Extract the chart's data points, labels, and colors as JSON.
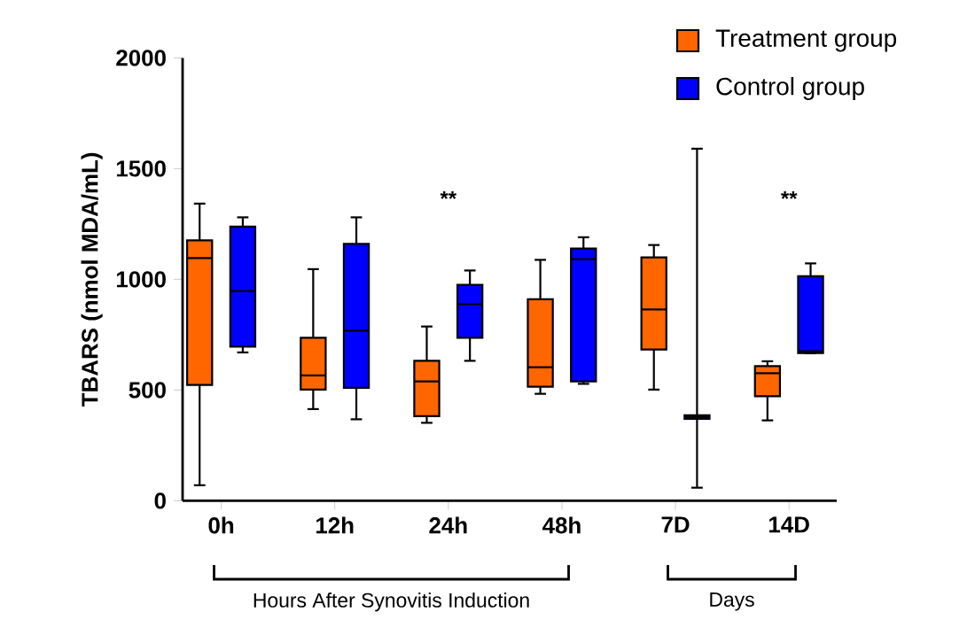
{
  "chart_data": {
    "type": "box",
    "ylabel": "TBARS (nmol MDA/mL)",
    "categories": [
      "0h",
      "12h",
      "24h",
      "48h",
      "7D",
      "14D"
    ],
    "ylim": [
      0,
      2000
    ],
    "yticks": [
      0,
      500,
      1000,
      1500,
      2000
    ],
    "legend": "top right",
    "grid": false,
    "series": [
      {
        "name": "Treatment group",
        "color": "#ff6600",
        "boxes": [
          {
            "low": 70,
            "q1": 523,
            "median": 1096,
            "q3": 1176,
            "high": 1342
          },
          {
            "low": 414,
            "q1": 502,
            "median": 566,
            "q3": 736,
            "high": 1046
          },
          {
            "low": 352,
            "q1": 382,
            "median": 539,
            "q3": 632,
            "high": 787
          },
          {
            "low": 483,
            "q1": 515,
            "median": 603,
            "q3": 910,
            "high": 1088
          },
          {
            "low": 502,
            "q1": 683,
            "median": 864,
            "q3": 1099,
            "high": 1155
          },
          {
            "low": 363,
            "q1": 472,
            "median": 576,
            "q3": 608,
            "high": 630
          }
        ]
      },
      {
        "name": "Control group",
        "color": "#0000ff",
        "boxes": [
          {
            "low": 670,
            "q1": 696,
            "median": 947,
            "q3": 1238,
            "high": 1280
          },
          {
            "low": 368,
            "q1": 510,
            "median": 768,
            "q3": 1160,
            "high": 1280
          },
          {
            "low": 632,
            "q1": 736,
            "median": 888,
            "q3": 975,
            "high": 1040
          },
          {
            "low": 528,
            "q1": 539,
            "median": 1091,
            "q3": 1139,
            "high": 1190
          },
          {
            "low": 59,
            "q1": 370,
            "median": 379,
            "q3": 386,
            "high": 1590
          },
          {
            "low": 667,
            "q1": 667,
            "median": 675,
            "q3": 1014,
            "high": 1072
          }
        ]
      }
    ],
    "annotations": [
      "**",
      "**",
      "Hours After Synovitis Induction",
      "Days"
    ]
  }
}
